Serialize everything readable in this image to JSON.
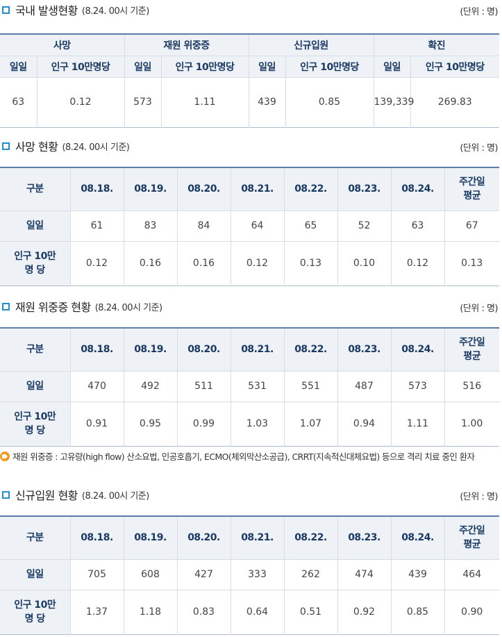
{
  "sections": {
    "domestic": {
      "title": "국내 발생현황",
      "subtitle": "(8.24. 00시 기준)",
      "unit": "(단위 : 명)",
      "groups": [
        "사망",
        "재원 위중증",
        "신규입원",
        "확진"
      ],
      "subheaders": [
        "일일",
        "인구 10만명당",
        "일일",
        "인구 10만명당",
        "일일",
        "인구 10만명당",
        "일일",
        "인구 10만명당"
      ],
      "values": [
        "63",
        "0.12",
        "573",
        "1.11",
        "439",
        "0.85",
        "139,339",
        "269.83"
      ]
    },
    "deaths": {
      "title": "사망 현황",
      "subtitle": "(8.24. 00시 기준)",
      "unit": "(단위 : 명)",
      "header": [
        "구분",
        "08.18.",
        "08.19.",
        "08.20.",
        "08.21.",
        "08.22.",
        "08.23.",
        "08.24.",
        "주간일\n평균"
      ],
      "row1": {
        "label": "일일",
        "values": [
          "61",
          "83",
          "84",
          "64",
          "65",
          "52",
          "63",
          "67"
        ]
      },
      "row2": {
        "label": "인구 10만\n명 당",
        "values": [
          "0.12",
          "0.16",
          "0.16",
          "0.12",
          "0.13",
          "0.10",
          "0.12",
          "0.13"
        ]
      }
    },
    "critical": {
      "title": "재원 위중증 현황",
      "subtitle": "(8.24. 00시 기준)",
      "unit": "(단위 : 명)",
      "header": [
        "구분",
        "08.18.",
        "08.19.",
        "08.20.",
        "08.21.",
        "08.22.",
        "08.23.",
        "08.24.",
        "주간일\n평균"
      ],
      "row1": {
        "label": "일일",
        "values": [
          "470",
          "492",
          "511",
          "531",
          "551",
          "487",
          "573",
          "516"
        ]
      },
      "row2": {
        "label": "인구 10만\n명 당",
        "values": [
          "0.91",
          "0.95",
          "0.99",
          "1.03",
          "1.07",
          "0.94",
          "1.11",
          "1.00"
        ]
      }
    },
    "note": "재원 위중증 : 고유량(high flow) 산소요법, 인공호흡기, ECMO(체외막산소공급), CRRT(지속적신대체요법) 등으로 격리 치료 중인 환자",
    "admissions": {
      "title": "신규입원 현황",
      "subtitle": "(8.24. 00시 기준)",
      "unit": "(단위 : 명)",
      "header": [
        "구분",
        "08.18.",
        "08.19.",
        "08.20.",
        "08.21.",
        "08.22.",
        "08.23.",
        "08.24.",
        "주간일\n평균"
      ],
      "row1": {
        "label": "일일",
        "values": [
          "705",
          "608",
          "427",
          "333",
          "262",
          "474",
          "439",
          "464"
        ]
      },
      "row2": {
        "label": "인구 10만\n명 당",
        "values": [
          "1.37",
          "1.18",
          "0.83",
          "0.64",
          "0.51",
          "0.92",
          "0.85",
          "0.90"
        ]
      }
    }
  }
}
